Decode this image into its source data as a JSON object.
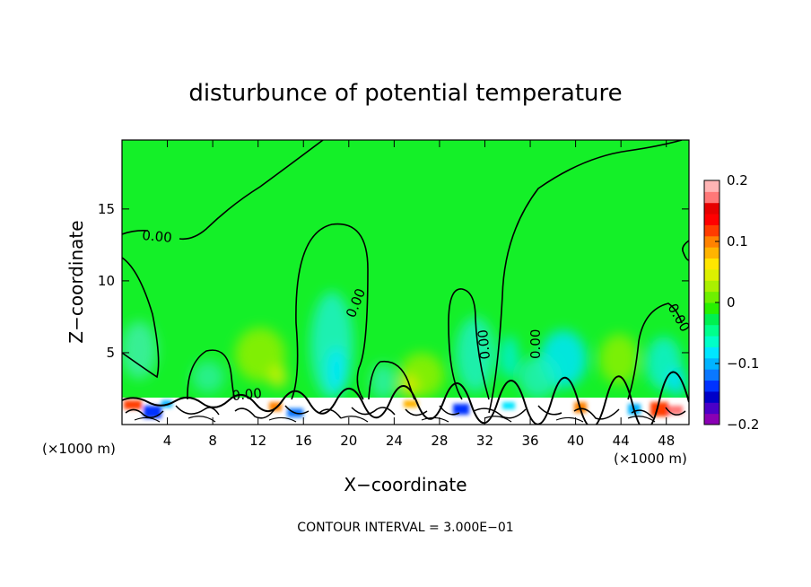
{
  "chart_data": {
    "type": "heatmap",
    "title": "disturbunce of potential temperature",
    "xlabel": "X−coordinate",
    "ylabel": "Z−coordinate",
    "x_unit_left": "(×1000 m)",
    "x_unit_right": "(×1000 m)",
    "footer": "CONTOUR INTERVAL = 3.000E−01",
    "xlim": [
      0,
      50
    ],
    "ylim": [
      0,
      19.8
    ],
    "x_ticks": [
      4,
      8,
      12,
      16,
      20,
      24,
      28,
      32,
      36,
      40,
      44,
      48
    ],
    "x_tick_labels": [
      "4",
      "8",
      "12",
      "16",
      "20",
      "24",
      "28",
      "32",
      "36",
      "40",
      "44",
      "48"
    ],
    "y_ticks": [
      5,
      10,
      15
    ],
    "y_tick_labels": [
      "5",
      "10",
      "15"
    ],
    "colorbar": {
      "min": -0.2,
      "max": 0.2,
      "ticks": [
        0.2,
        0.1,
        0,
        -0.1,
        -0.2
      ],
      "tick_labels": [
        "0.2",
        "0.1",
        "0",
        "−0.1",
        "−0.2"
      ],
      "colors": [
        "#8a00b4",
        "#4b00c8",
        "#0000c8",
        "#0032ff",
        "#0a78ff",
        "#00b4ff",
        "#00e6ff",
        "#00ffc8",
        "#00ff8c",
        "#00f050",
        "#28f000",
        "#6ef000",
        "#aaf000",
        "#dcf000",
        "#ffe600",
        "#ffb400",
        "#ff8200",
        "#ff3c00",
        "#ff0000",
        "#e60000",
        "#ff7878",
        "#ffb4b4"
      ]
    },
    "background_color": "#14f028",
    "zero_contour_label": "0.00",
    "contour_label_values": [
      0.0,
      0.0,
      0.0,
      0.0,
      0.0,
      0.0,
      0.0
    ],
    "grid": false,
    "legend": "colorbar-right"
  }
}
